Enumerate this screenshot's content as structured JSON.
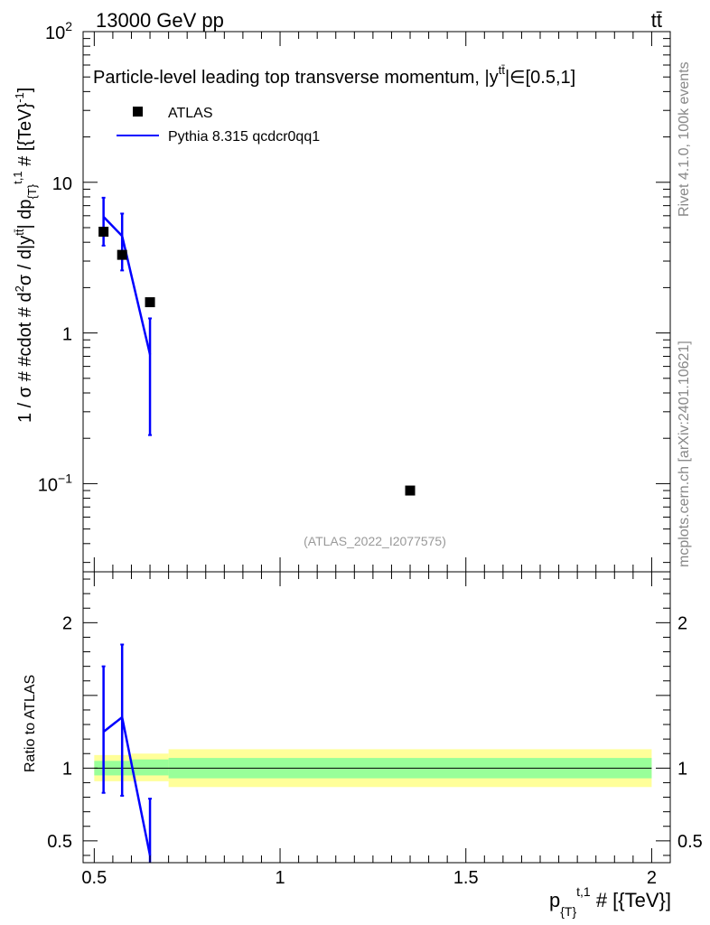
{
  "header": {
    "left_label": "13000 GeV pp",
    "right_label": "tt̄"
  },
  "side_labels": {
    "rivet": "Rivet 4.1.0,  100k events",
    "source": "mcplots.cern.ch [arXiv:2401.10621]"
  },
  "colors": {
    "mc_line": "#0000ff",
    "data_marker": "#000000",
    "band_inner": "#99ff99",
    "band_outer": "#ffff99"
  },
  "chart_data": {
    "type": "line",
    "title": "Particle-level leading top transverse momentum, |y^{tt̄}|∈[0.5,1]",
    "title_main": "Particle-level leading top transverse momentum, |",
    "title_sym": "y",
    "title_sup": "tt̄",
    "title_tail": "|∈[0.5,1]",
    "watermark": "(ATLAS_2022_I2077575)",
    "xlabel": "p_{T}^{t,1} # [{TeV}]",
    "xlabel_main": "p",
    "xlabel_sub": "{T}",
    "xlabel_sup": "t,1",
    "xlabel_tail": " # [{TeV}]",
    "ylabel": "1 / σ # #cdot # d²σ / d|y^{tt̄}| dp_{T}^{t,1} # [{TeV}⁻¹]",
    "ylabel_main": "1 / σ # #cdot # d",
    "ylabel_sup2": "2",
    "ylabel_mid": "σ / d|y",
    "ylabel_suptt": "tt̄",
    "ylabel_mid2": "| dp",
    "ylabel_sub": "{T}",
    "ylabel_supt1": "t,1",
    "ylabel_tail": " # [{TeV}",
    "ylabel_supinv": "-1",
    "ylabel_end": "]",
    "ratio_ylabel": "Ratio to ATLAS",
    "xlim": [
      0.47,
      2.05
    ],
    "ylim": [
      0.026,
      100
    ],
    "ratio_ylim": [
      0.35,
      2.35
    ],
    "xticks": [
      {
        "value": 0.5,
        "label": "0.5"
      },
      {
        "value": 1,
        "label": "1"
      },
      {
        "value": 1.5,
        "label": "1.5"
      },
      {
        "value": 2,
        "label": "2"
      }
    ],
    "yticks": [
      {
        "value": 100,
        "base": "10",
        "exp": "2"
      },
      {
        "value": 10,
        "base": "10",
        "exp": ""
      },
      {
        "value": 1,
        "base": "1",
        "exp": ""
      },
      {
        "value": 0.1,
        "base": "10",
        "exp": "−1"
      }
    ],
    "ratio_yticks": [
      {
        "value": 2,
        "label": "2"
      },
      {
        "value": 1,
        "label": "1"
      },
      {
        "value": 0.5,
        "label": "0.5"
      }
    ],
    "series": [
      {
        "name": "ATLAS",
        "kind": "data",
        "points": [
          {
            "x": 0.525,
            "y": 4.7,
            "xlo": 0.5,
            "xhi": 0.55
          },
          {
            "x": 0.575,
            "y": 3.3,
            "xlo": 0.55,
            "xhi": 0.6
          },
          {
            "x": 0.65,
            "y": 1.6,
            "xlo": 0.6,
            "xhi": 0.7
          },
          {
            "x": 1.35,
            "y": 0.09,
            "xlo": 0.7,
            "xhi": 2.0
          }
        ]
      },
      {
        "name": "Pythia 8.315 qcdcr0qq1",
        "kind": "mc",
        "points": [
          {
            "x": 0.525,
            "y": 5.9,
            "lo": 3.8,
            "hi": 7.9
          },
          {
            "x": 0.575,
            "y": 4.4,
            "lo": 2.6,
            "hi": 6.2
          },
          {
            "x": 0.65,
            "y": 0.72,
            "lo": 0.21,
            "hi": 1.25
          }
        ]
      }
    ],
    "ratio": {
      "points": [
        {
          "x": 0.525,
          "y": 1.25,
          "lo": 0.83,
          "hi": 1.7
        },
        {
          "x": 0.575,
          "y": 1.35,
          "lo": 0.81,
          "hi": 1.85
        },
        {
          "x": 0.65,
          "y": 0.4,
          "lo": 0.3,
          "hi": 0.79
        }
      ],
      "bands": [
        {
          "xlo": 0.5,
          "xhi": 0.6,
          "inner_lo": 0.95,
          "inner_hi": 1.05,
          "outer_lo": 0.91,
          "outer_hi": 1.09
        },
        {
          "xlo": 0.6,
          "xhi": 0.7,
          "inner_lo": 0.95,
          "inner_hi": 1.06,
          "outer_lo": 0.91,
          "outer_hi": 1.1
        },
        {
          "xlo": 0.7,
          "xhi": 2.0,
          "inner_lo": 0.93,
          "inner_hi": 1.07,
          "outer_lo": 0.87,
          "outer_hi": 1.13
        }
      ]
    }
  }
}
